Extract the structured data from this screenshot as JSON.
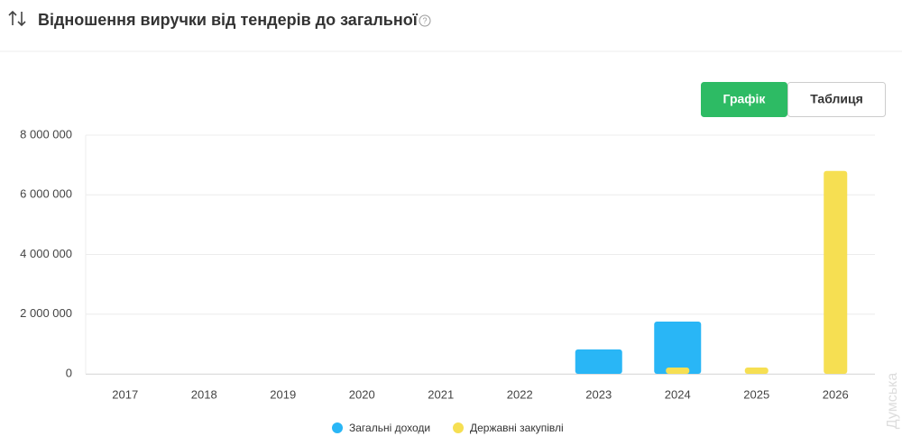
{
  "header": {
    "title": "Відношення виручки від тендерів до загальної",
    "help_icon": "?"
  },
  "toggle": {
    "options": [
      "Графік",
      "Таблиця"
    ],
    "active": 0
  },
  "watermark": "Думська",
  "chart_data": {
    "type": "bar",
    "categories": [
      "2017",
      "2018",
      "2019",
      "2020",
      "2021",
      "2022",
      "2023",
      "2024",
      "2025",
      "2026"
    ],
    "series": [
      {
        "name": "Загальні доходи",
        "color": "#29b6f6",
        "values": [
          0,
          0,
          0,
          0,
          0,
          0,
          820000,
          1750000,
          0,
          0
        ]
      },
      {
        "name": "Державні закупівлі",
        "color": "#f6df52",
        "values": [
          0,
          0,
          0,
          0,
          0,
          0,
          0,
          210000,
          210000,
          6800000
        ]
      }
    ],
    "ylim": [
      0,
      8000000
    ],
    "yticks": [
      0,
      {
        "value": 2000000,
        "label": "2 000 000"
      },
      {
        "value": 4000000,
        "label": "4 000 000"
      },
      {
        "value": 6000000,
        "label": "6 000 000"
      },
      {
        "value": 8000000,
        "label": "8 000 000"
      }
    ],
    "grid": true
  }
}
